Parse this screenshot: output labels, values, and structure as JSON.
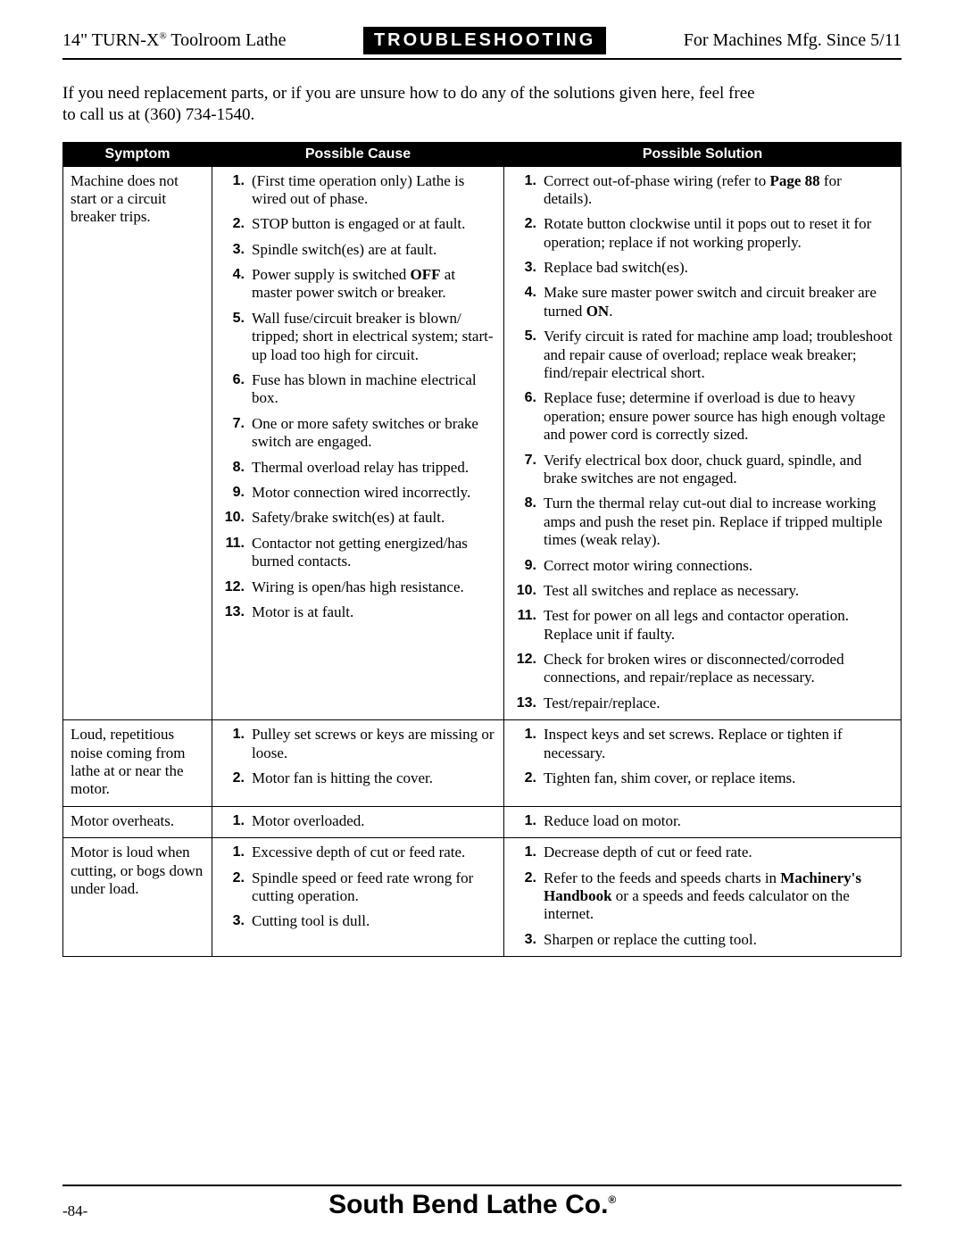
{
  "header": {
    "left_prefix": "14\" TURN-X",
    "left_suffix": " Toolroom Lathe",
    "badge": "TROUBLESHOOTING",
    "right": "For Machines Mfg. Since 5/11"
  },
  "intro": {
    "line1": "If you need replacement parts, or if you are unsure how to do any of the solutions given here, feel free",
    "line2": "to call us at (360) 734-1540."
  },
  "table": {
    "headers": {
      "symptom": "Symptom",
      "cause": "Possible Cause",
      "solution": "Possible Solution"
    },
    "rows": [
      {
        "symptom": "Machine does not start or a circuit breaker trips.",
        "causes": [
          "(First time operation only) Lathe is wired out of phase.",
          "STOP button is engaged or at fault.",
          "Spindle switch(es) are at fault.",
          "Power supply is switched <b>OFF</b> at master power switch or breaker.",
          "Wall fuse/circuit breaker is blown/ tripped; short in electrical system; start-up load too high for circuit.",
          "Fuse has blown in machine electrical box.",
          "One or more safety switches or brake switch are engaged.",
          "Thermal overload relay has tripped.",
          "Motor connection wired incorrectly.",
          "Safety/brake switch(es) at fault.",
          "Contactor not getting energized/has burned contacts.",
          "Wiring is open/has high resistance.",
          "Motor is at fault."
        ],
        "solutions": [
          "Correct out-of-phase wiring (refer to <b>Page 88</b> for details).",
          "Rotate button clockwise until it pops out to reset it for operation; replace if not working properly.",
          "Replace bad switch(es).",
          "Make sure master power switch and circuit breaker are turned <b>ON</b>.",
          "Verify circuit is rated for machine amp load; troubleshoot and repair cause of overload; replace weak breaker; find/repair electrical short.",
          "Replace fuse; determine if overload is due to heavy operation; ensure power source has high enough voltage and power cord is correctly sized.",
          "Verify electrical box door, chuck guard, spindle, and brake switches are not engaged.",
          "Turn the thermal relay cut-out dial to increase working amps and push the reset pin. Replace if tripped multiple times (weak relay).",
          "Correct motor wiring connections.",
          "Test all switches and replace as necessary.",
          "Test for power on all legs and contactor operation. Replace unit if faulty.",
          "Check for broken wires or disconnected/corroded connections, and repair/replace as necessary.",
          "Test/repair/replace."
        ]
      },
      {
        "symptom": "Loud, repetitious noise coming from lathe at or near the motor.",
        "causes": [
          "Pulley set screws or keys are missing or loose.",
          "Motor fan is hitting the cover."
        ],
        "solutions": [
          "Inspect keys and set screws. Replace or tighten if necessary.",
          "Tighten fan, shim cover, or replace items."
        ]
      },
      {
        "symptom": "Motor overheats.",
        "causes": [
          "Motor overloaded."
        ],
        "solutions": [
          "Reduce load on motor."
        ]
      },
      {
        "symptom": "Motor is loud when cutting, or bogs down under load.",
        "causes": [
          "Excessive depth of cut or feed rate.",
          "Spindle speed or feed rate wrong for cutting operation.",
          "Cutting tool is dull."
        ],
        "solutions": [
          "Decrease depth of cut or feed rate.",
          "Refer to the feeds and speeds charts in <b>Machinery's Handbook</b> or a speeds and feeds calculator on the internet.",
          "Sharpen or replace the cutting tool."
        ]
      }
    ]
  },
  "footer": {
    "page_number": "-84-",
    "company_prefix": "South Bend Lathe Co",
    "company_dot": "."
  }
}
